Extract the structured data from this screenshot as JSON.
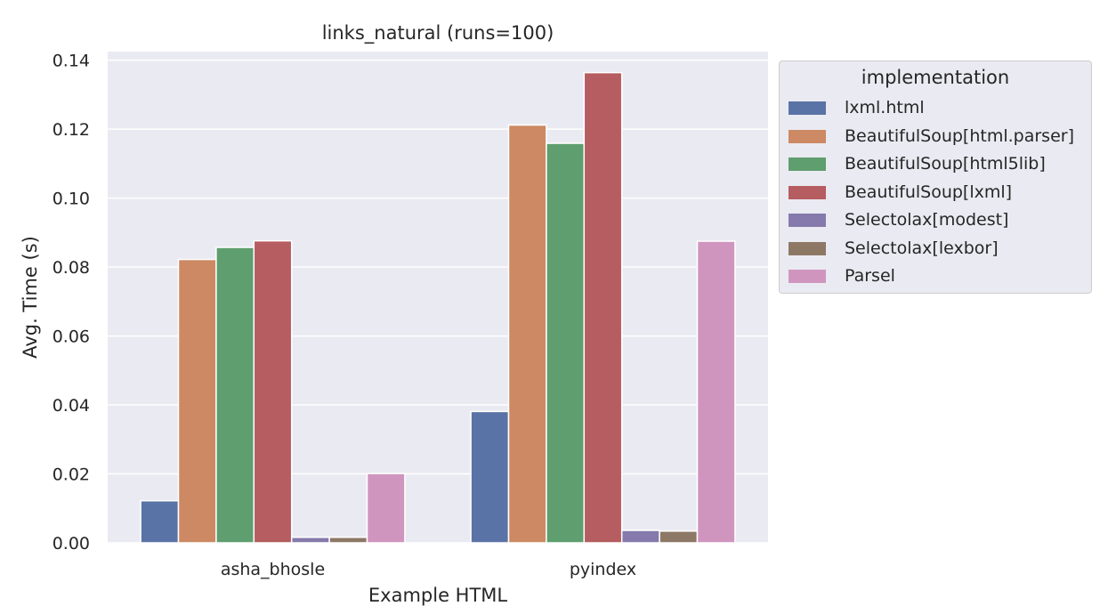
{
  "chart_data": {
    "type": "bar",
    "title": "links_natural (runs=100)",
    "xlabel": "Example HTML",
    "ylabel": "Avg. Time (s)",
    "ylim": [
      0,
      0.1425
    ],
    "yticks": [
      "0.00",
      "0.02",
      "0.04",
      "0.06",
      "0.08",
      "0.10",
      "0.12",
      "0.14"
    ],
    "grid": true,
    "legend_title": "implementation",
    "legend_position": "outside-right",
    "categories": [
      "asha_bhosle",
      "pyindex"
    ],
    "series": [
      {
        "name": "lxml.html",
        "color": "#5a73a6",
        "values": [
          0.0122,
          0.0381
        ]
      },
      {
        "name": "BeautifulSoup[html.parser]",
        "color": "#cc8963",
        "values": [
          0.0822,
          0.1212
        ]
      },
      {
        "name": "BeautifulSoup[html5lib]",
        "color": "#5f9e6e",
        "values": [
          0.0857,
          0.1159
        ]
      },
      {
        "name": "BeautifulSoup[lxml]",
        "color": "#b55d60",
        "values": [
          0.0876,
          0.1364
        ]
      },
      {
        "name": "Selectolax[modest]",
        "color": "#857aab",
        "values": [
          0.0016,
          0.0036
        ]
      },
      {
        "name": "Selectolax[lexbor]",
        "color": "#8d7866",
        "values": [
          0.0016,
          0.0034
        ]
      },
      {
        "name": "Parsel",
        "color": "#d095bf",
        "values": [
          0.0201,
          0.0875
        ]
      }
    ]
  }
}
